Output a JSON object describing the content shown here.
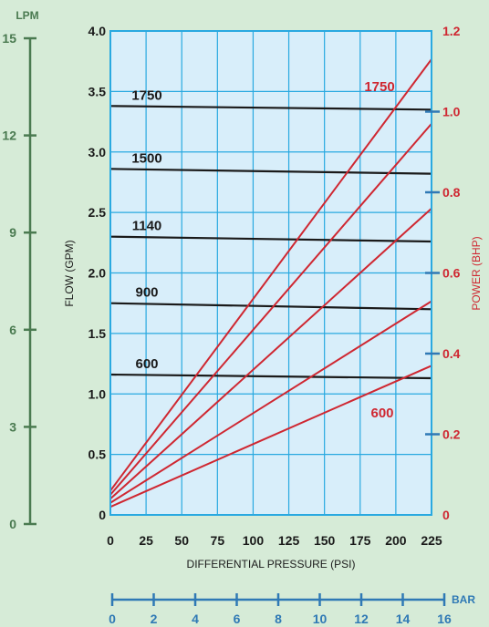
{
  "colors": {
    "background": "#d6ebd7",
    "plot_background": "#d8eefa",
    "grid": "#29a9e0",
    "flow": "#1a1a1a",
    "power": "#cf2731",
    "lpm_axis": "#4a7a50",
    "bar_axis": "#2f79b5"
  },
  "chart_data": {
    "type": "line",
    "xlabel": "DIFFERENTIAL PRESSURE  (PSI)",
    "ylabel": "FLOW  (GPM)",
    "y2label": "POWER  (BHP)",
    "lpm_label": "LPM",
    "bar_label": "BAR",
    "xlim": [
      0,
      225
    ],
    "ylim": [
      0,
      4.0
    ],
    "y2lim": [
      0,
      1.2
    ],
    "lpm_lim": [
      0,
      15
    ],
    "bar_lim": [
      0,
      16
    ],
    "grid": true,
    "x_ticks": [
      0,
      25,
      50,
      75,
      100,
      125,
      150,
      175,
      200,
      225
    ],
    "x_tick_labels": [
      "0",
      "25",
      "50",
      "75",
      "100",
      "125",
      "150",
      "175",
      "200",
      "225"
    ],
    "y_ticks": [
      0,
      0.5,
      1.0,
      1.5,
      2.0,
      2.5,
      3.0,
      3.5,
      4.0
    ],
    "y_tick_labels": [
      "0",
      "0.5",
      "1.0",
      "1.5",
      "2.0",
      "2.5",
      "3.0",
      "3.5",
      "4.0"
    ],
    "y2_ticks": [
      0,
      0.2,
      0.4,
      0.6,
      0.8,
      1.0,
      1.2
    ],
    "y2_tick_labels": [
      "0",
      "0.2",
      "0.4",
      "0.6",
      "0.8",
      "1.0",
      "1.2"
    ],
    "lpm_ticks": [
      0,
      3,
      6,
      9,
      12,
      15
    ],
    "lpm_tick_labels": [
      "0",
      "3",
      "6",
      "9",
      "12",
      "15"
    ],
    "bar_ticks": [
      0,
      2,
      4,
      6,
      8,
      10,
      12,
      14,
      16
    ],
    "bar_tick_labels": [
      "0",
      "2",
      "4",
      "6",
      "8",
      "10",
      "12",
      "14",
      "16"
    ],
    "flow_series": [
      {
        "name": "600",
        "x": [
          0,
          225
        ],
        "y": [
          1.16,
          1.13
        ]
      },
      {
        "name": "900",
        "x": [
          0,
          225
        ],
        "y": [
          1.75,
          1.7
        ]
      },
      {
        "name": "1140",
        "x": [
          0,
          225
        ],
        "y": [
          2.3,
          2.26
        ]
      },
      {
        "name": "1500",
        "x": [
          0,
          225
        ],
        "y": [
          2.86,
          2.82
        ]
      },
      {
        "name": "1750",
        "x": [
          0,
          225
        ],
        "y": [
          3.38,
          3.35
        ]
      }
    ],
    "power_series": [
      {
        "name": "600",
        "x": [
          0,
          225
        ],
        "y": [
          0.02,
          0.37
        ]
      },
      {
        "name": "",
        "x": [
          0,
          225
        ],
        "y": [
          0.03,
          0.53
        ]
      },
      {
        "name": "",
        "x": [
          0,
          225
        ],
        "y": [
          0.04,
          0.76
        ]
      },
      {
        "name": "",
        "x": [
          0,
          225
        ],
        "y": [
          0.05,
          0.97
        ]
      },
      {
        "name": "1750",
        "x": [
          0,
          225
        ],
        "y": [
          0.06,
          1.13
        ]
      }
    ]
  }
}
